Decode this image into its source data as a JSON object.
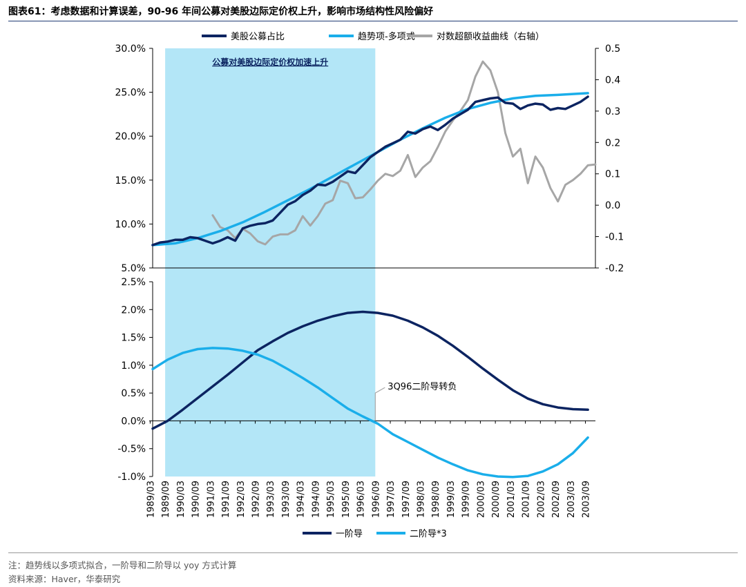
{
  "header": {
    "title": "图表61：考虑数据和计算误差，90-96 年间公募对美股边际定价权上升，影响市场结构性风险偏好"
  },
  "footer": {
    "note": "注：趋势线以多项式拟合，一阶导和二阶导以 yoy 方式计算",
    "source": "资料来源：Haver，华泰研究"
  },
  "colors": {
    "dark_navy": "#0c2461",
    "light_blue": "#1aaeea",
    "gray": "#a6a6a6",
    "highlight": "#b3e6f7"
  },
  "chart_data": [
    {
      "type": "line",
      "panel": "top",
      "title": "",
      "ylim_left": [
        0.05,
        0.3
      ],
      "yticks_left": [
        "5.0%",
        "10.0%",
        "15.0%",
        "20.0%",
        "25.0%",
        "30.0%"
      ],
      "ylim_right": [
        -0.2,
        0.5
      ],
      "yticks_right": [
        "-0.2",
        "-0.1",
        "0.0",
        "0.1",
        "0.2",
        "0.3",
        "0.4",
        "0.5"
      ],
      "legend_position": "top-center",
      "annotation": "公募对美股边际定价权加速上升",
      "highlight_range": [
        "1989/09",
        "1996/09"
      ],
      "series": [
        {
          "name": "美股公募占比",
          "axis": "left",
          "color": "#0c2461",
          "points": [
            [
              1989.25,
              0.076
            ],
            [
              1989.5,
              0.079
            ],
            [
              1989.75,
              0.08
            ],
            [
              1990.0,
              0.082
            ],
            [
              1990.25,
              0.082
            ],
            [
              1990.5,
              0.085
            ],
            [
              1990.75,
              0.084
            ],
            [
              1991.0,
              0.081
            ],
            [
              1991.25,
              0.078
            ],
            [
              1991.5,
              0.081
            ],
            [
              1991.75,
              0.085
            ],
            [
              1992.0,
              0.081
            ],
            [
              1992.25,
              0.095
            ],
            [
              1992.5,
              0.098
            ],
            [
              1992.75,
              0.1
            ],
            [
              1993.0,
              0.101
            ],
            [
              1993.25,
              0.104
            ],
            [
              1993.5,
              0.113
            ],
            [
              1993.75,
              0.122
            ],
            [
              1994.0,
              0.126
            ],
            [
              1994.25,
              0.133
            ],
            [
              1994.5,
              0.138
            ],
            [
              1994.75,
              0.145
            ],
            [
              1995.0,
              0.144
            ],
            [
              1995.25,
              0.148
            ],
            [
              1995.5,
              0.154
            ],
            [
              1995.75,
              0.16
            ],
            [
              1996.0,
              0.158
            ],
            [
              1996.25,
              0.167
            ],
            [
              1996.5,
              0.176
            ],
            [
              1996.75,
              0.182
            ],
            [
              1997.0,
              0.188
            ],
            [
              1997.25,
              0.192
            ],
            [
              1997.5,
              0.196
            ],
            [
              1997.75,
              0.205
            ],
            [
              1998.0,
              0.203
            ],
            [
              1998.25,
              0.208
            ],
            [
              1998.5,
              0.211
            ],
            [
              1998.75,
              0.207
            ],
            [
              1999.0,
              0.213
            ],
            [
              1999.25,
              0.22
            ],
            [
              1999.5,
              0.225
            ],
            [
              1999.75,
              0.23
            ],
            [
              2000.0,
              0.239
            ],
            [
              2000.25,
              0.241
            ],
            [
              2000.5,
              0.243
            ],
            [
              2000.75,
              0.244
            ],
            [
              2001.0,
              0.238
            ],
            [
              2001.25,
              0.237
            ],
            [
              2001.5,
              0.231
            ],
            [
              2001.75,
              0.235
            ],
            [
              2002.0,
              0.237
            ],
            [
              2002.25,
              0.236
            ],
            [
              2002.5,
              0.23
            ],
            [
              2002.75,
              0.232
            ],
            [
              2003.0,
              0.231
            ],
            [
              2003.25,
              0.235
            ],
            [
              2003.5,
              0.239
            ],
            [
              2003.75,
              0.245
            ]
          ]
        },
        {
          "name": "趋势项-多项式",
          "axis": "left",
          "color": "#1aaeea",
          "points": [
            [
              1989.25,
              0.076
            ],
            [
              1990.0,
              0.078
            ],
            [
              1990.75,
              0.084
            ],
            [
              1991.5,
              0.092
            ],
            [
              1992.25,
              0.102
            ],
            [
              1993.0,
              0.114
            ],
            [
              1993.75,
              0.127
            ],
            [
              1994.5,
              0.14
            ],
            [
              1995.25,
              0.154
            ],
            [
              1996.0,
              0.168
            ],
            [
              1996.75,
              0.182
            ],
            [
              1997.5,
              0.196
            ],
            [
              1998.25,
              0.209
            ],
            [
              1999.0,
              0.221
            ],
            [
              1999.75,
              0.231
            ],
            [
              2000.5,
              0.238
            ],
            [
              2001.25,
              0.243
            ],
            [
              2002.0,
              0.246
            ],
            [
              2002.75,
              0.247
            ],
            [
              2003.75,
              0.249
            ]
          ]
        },
        {
          "name": "对数超额收益曲线（右轴）",
          "axis": "right",
          "color": "#a6a6a6",
          "points": [
            [
              1991.25,
              -0.032
            ],
            [
              1991.5,
              -0.07
            ],
            [
              1991.75,
              -0.08
            ],
            [
              1992.0,
              -0.105
            ],
            [
              1992.25,
              -0.075
            ],
            [
              1992.5,
              -0.09
            ],
            [
              1992.75,
              -0.115
            ],
            [
              1993.0,
              -0.125
            ],
            [
              1993.25,
              -0.1
            ],
            [
              1993.5,
              -0.093
            ],
            [
              1993.75,
              -0.093
            ],
            [
              1994.0,
              -0.08
            ],
            [
              1994.25,
              -0.035
            ],
            [
              1994.5,
              -0.065
            ],
            [
              1994.75,
              -0.035
            ],
            [
              1995.0,
              0.005
            ],
            [
              1995.25,
              0.016
            ],
            [
              1995.5,
              0.078
            ],
            [
              1995.75,
              0.07
            ],
            [
              1996.0,
              0.022
            ],
            [
              1996.25,
              0.025
            ],
            [
              1996.5,
              0.05
            ],
            [
              1996.75,
              0.078
            ],
            [
              1997.0,
              0.1
            ],
            [
              1997.25,
              0.093
            ],
            [
              1997.5,
              0.11
            ],
            [
              1997.75,
              0.16
            ],
            [
              1998.0,
              0.09
            ],
            [
              1998.25,
              0.12
            ],
            [
              1998.5,
              0.14
            ],
            [
              1998.75,
              0.185
            ],
            [
              1999.0,
              0.235
            ],
            [
              1999.25,
              0.27
            ],
            [
              1999.5,
              0.3
            ],
            [
              1999.75,
              0.335
            ],
            [
              2000.0,
              0.41
            ],
            [
              2000.25,
              0.458
            ],
            [
              2000.5,
              0.43
            ],
            [
              2000.75,
              0.36
            ],
            [
              2001.0,
              0.23
            ],
            [
              2001.25,
              0.155
            ],
            [
              2001.5,
              0.18
            ],
            [
              2001.75,
              0.07
            ],
            [
              2002.0,
              0.155
            ],
            [
              2002.25,
              0.12
            ],
            [
              2002.5,
              0.055
            ],
            [
              2002.75,
              0.012
            ],
            [
              2003.0,
              0.065
            ],
            [
              2003.25,
              0.08
            ],
            [
              2003.5,
              0.1
            ],
            [
              2003.75,
              0.127
            ],
            [
              2004.0,
              0.13
            ]
          ]
        }
      ]
    },
    {
      "type": "line",
      "panel": "bottom",
      "title": "",
      "ylim": [
        -0.01,
        0.025
      ],
      "yticks": [
        "-1.0%",
        "-0.5%",
        "0.0%",
        "0.5%",
        "1.0%",
        "1.5%",
        "2.0%",
        "2.5%"
      ],
      "xticks": [
        "1989/03",
        "1989/09",
        "1990/03",
        "1990/09",
        "1991/03",
        "1991/09",
        "1992/03",
        "1992/09",
        "1993/03",
        "1993/09",
        "1994/03",
        "1994/09",
        "1995/03",
        "1995/09",
        "1996/03",
        "1996/09",
        "1997/03",
        "1997/09",
        "1998/03",
        "1998/09",
        "1999/03",
        "1999/09",
        "2000/03",
        "2000/09",
        "2001/03",
        "2001/09",
        "2002/03",
        "2002/09",
        "2003/03",
        "2003/09"
      ],
      "legend_position": "bottom-center",
      "annotation": "3Q96二阶导转负",
      "annotation_x": "1996/09",
      "highlight_range": [
        "1989/09",
        "1996/09"
      ],
      "series": [
        {
          "name": "一阶导",
          "color": "#0c2461",
          "points": [
            [
              1989.25,
              -0.0014
            ],
            [
              1989.75,
              0.0
            ],
            [
              1990.25,
              0.002
            ],
            [
              1990.75,
              0.0041
            ],
            [
              1991.25,
              0.0062
            ],
            [
              1991.75,
              0.0083
            ],
            [
              1992.25,
              0.0105
            ],
            [
              1992.75,
              0.0127
            ],
            [
              1993.25,
              0.0143
            ],
            [
              1993.75,
              0.0158
            ],
            [
              1994.25,
              0.017
            ],
            [
              1994.75,
              0.018
            ],
            [
              1995.25,
              0.0188
            ],
            [
              1995.75,
              0.0194
            ],
            [
              1996.25,
              0.0196
            ],
            [
              1996.75,
              0.0194
            ],
            [
              1997.25,
              0.0189
            ],
            [
              1997.75,
              0.018
            ],
            [
              1998.25,
              0.0168
            ],
            [
              1998.75,
              0.0153
            ],
            [
              1999.25,
              0.0135
            ],
            [
              1999.75,
              0.0115
            ],
            [
              2000.25,
              0.0094
            ],
            [
              2000.75,
              0.0074
            ],
            [
              2001.25,
              0.0055
            ],
            [
              2001.75,
              0.004
            ],
            [
              2002.25,
              0.003
            ],
            [
              2002.75,
              0.0024
            ],
            [
              2003.25,
              0.0021
            ],
            [
              2003.75,
              0.002
            ]
          ]
        },
        {
          "name": "二阶导*3",
          "color": "#1aaeea",
          "points": [
            [
              1989.25,
              0.0093
            ],
            [
              1989.75,
              0.011
            ],
            [
              1990.25,
              0.0122
            ],
            [
              1990.75,
              0.0129
            ],
            [
              1991.25,
              0.0131
            ],
            [
              1991.75,
              0.013
            ],
            [
              1992.25,
              0.0126
            ],
            [
              1992.75,
              0.0119
            ],
            [
              1993.25,
              0.0108
            ],
            [
              1993.75,
              0.0093
            ],
            [
              1994.25,
              0.0077
            ],
            [
              1994.75,
              0.006
            ],
            [
              1995.25,
              0.0041
            ],
            [
              1995.75,
              0.0022
            ],
            [
              1996.25,
              0.0008
            ],
            [
              1996.75,
              -0.0005
            ],
            [
              1997.25,
              -0.0024
            ],
            [
              1997.75,
              -0.0038
            ],
            [
              1998.25,
              -0.0052
            ],
            [
              1998.75,
              -0.0066
            ],
            [
              1999.25,
              -0.0078
            ],
            [
              1999.75,
              -0.0089
            ],
            [
              2000.25,
              -0.0096
            ],
            [
              2000.75,
              -0.01
            ],
            [
              2001.25,
              -0.0101
            ],
            [
              2001.75,
              -0.0099
            ],
            [
              2002.25,
              -0.0091
            ],
            [
              2002.75,
              -0.0078
            ],
            [
              2003.25,
              -0.0058
            ],
            [
              2003.75,
              -0.003
            ]
          ]
        }
      ]
    }
  ]
}
